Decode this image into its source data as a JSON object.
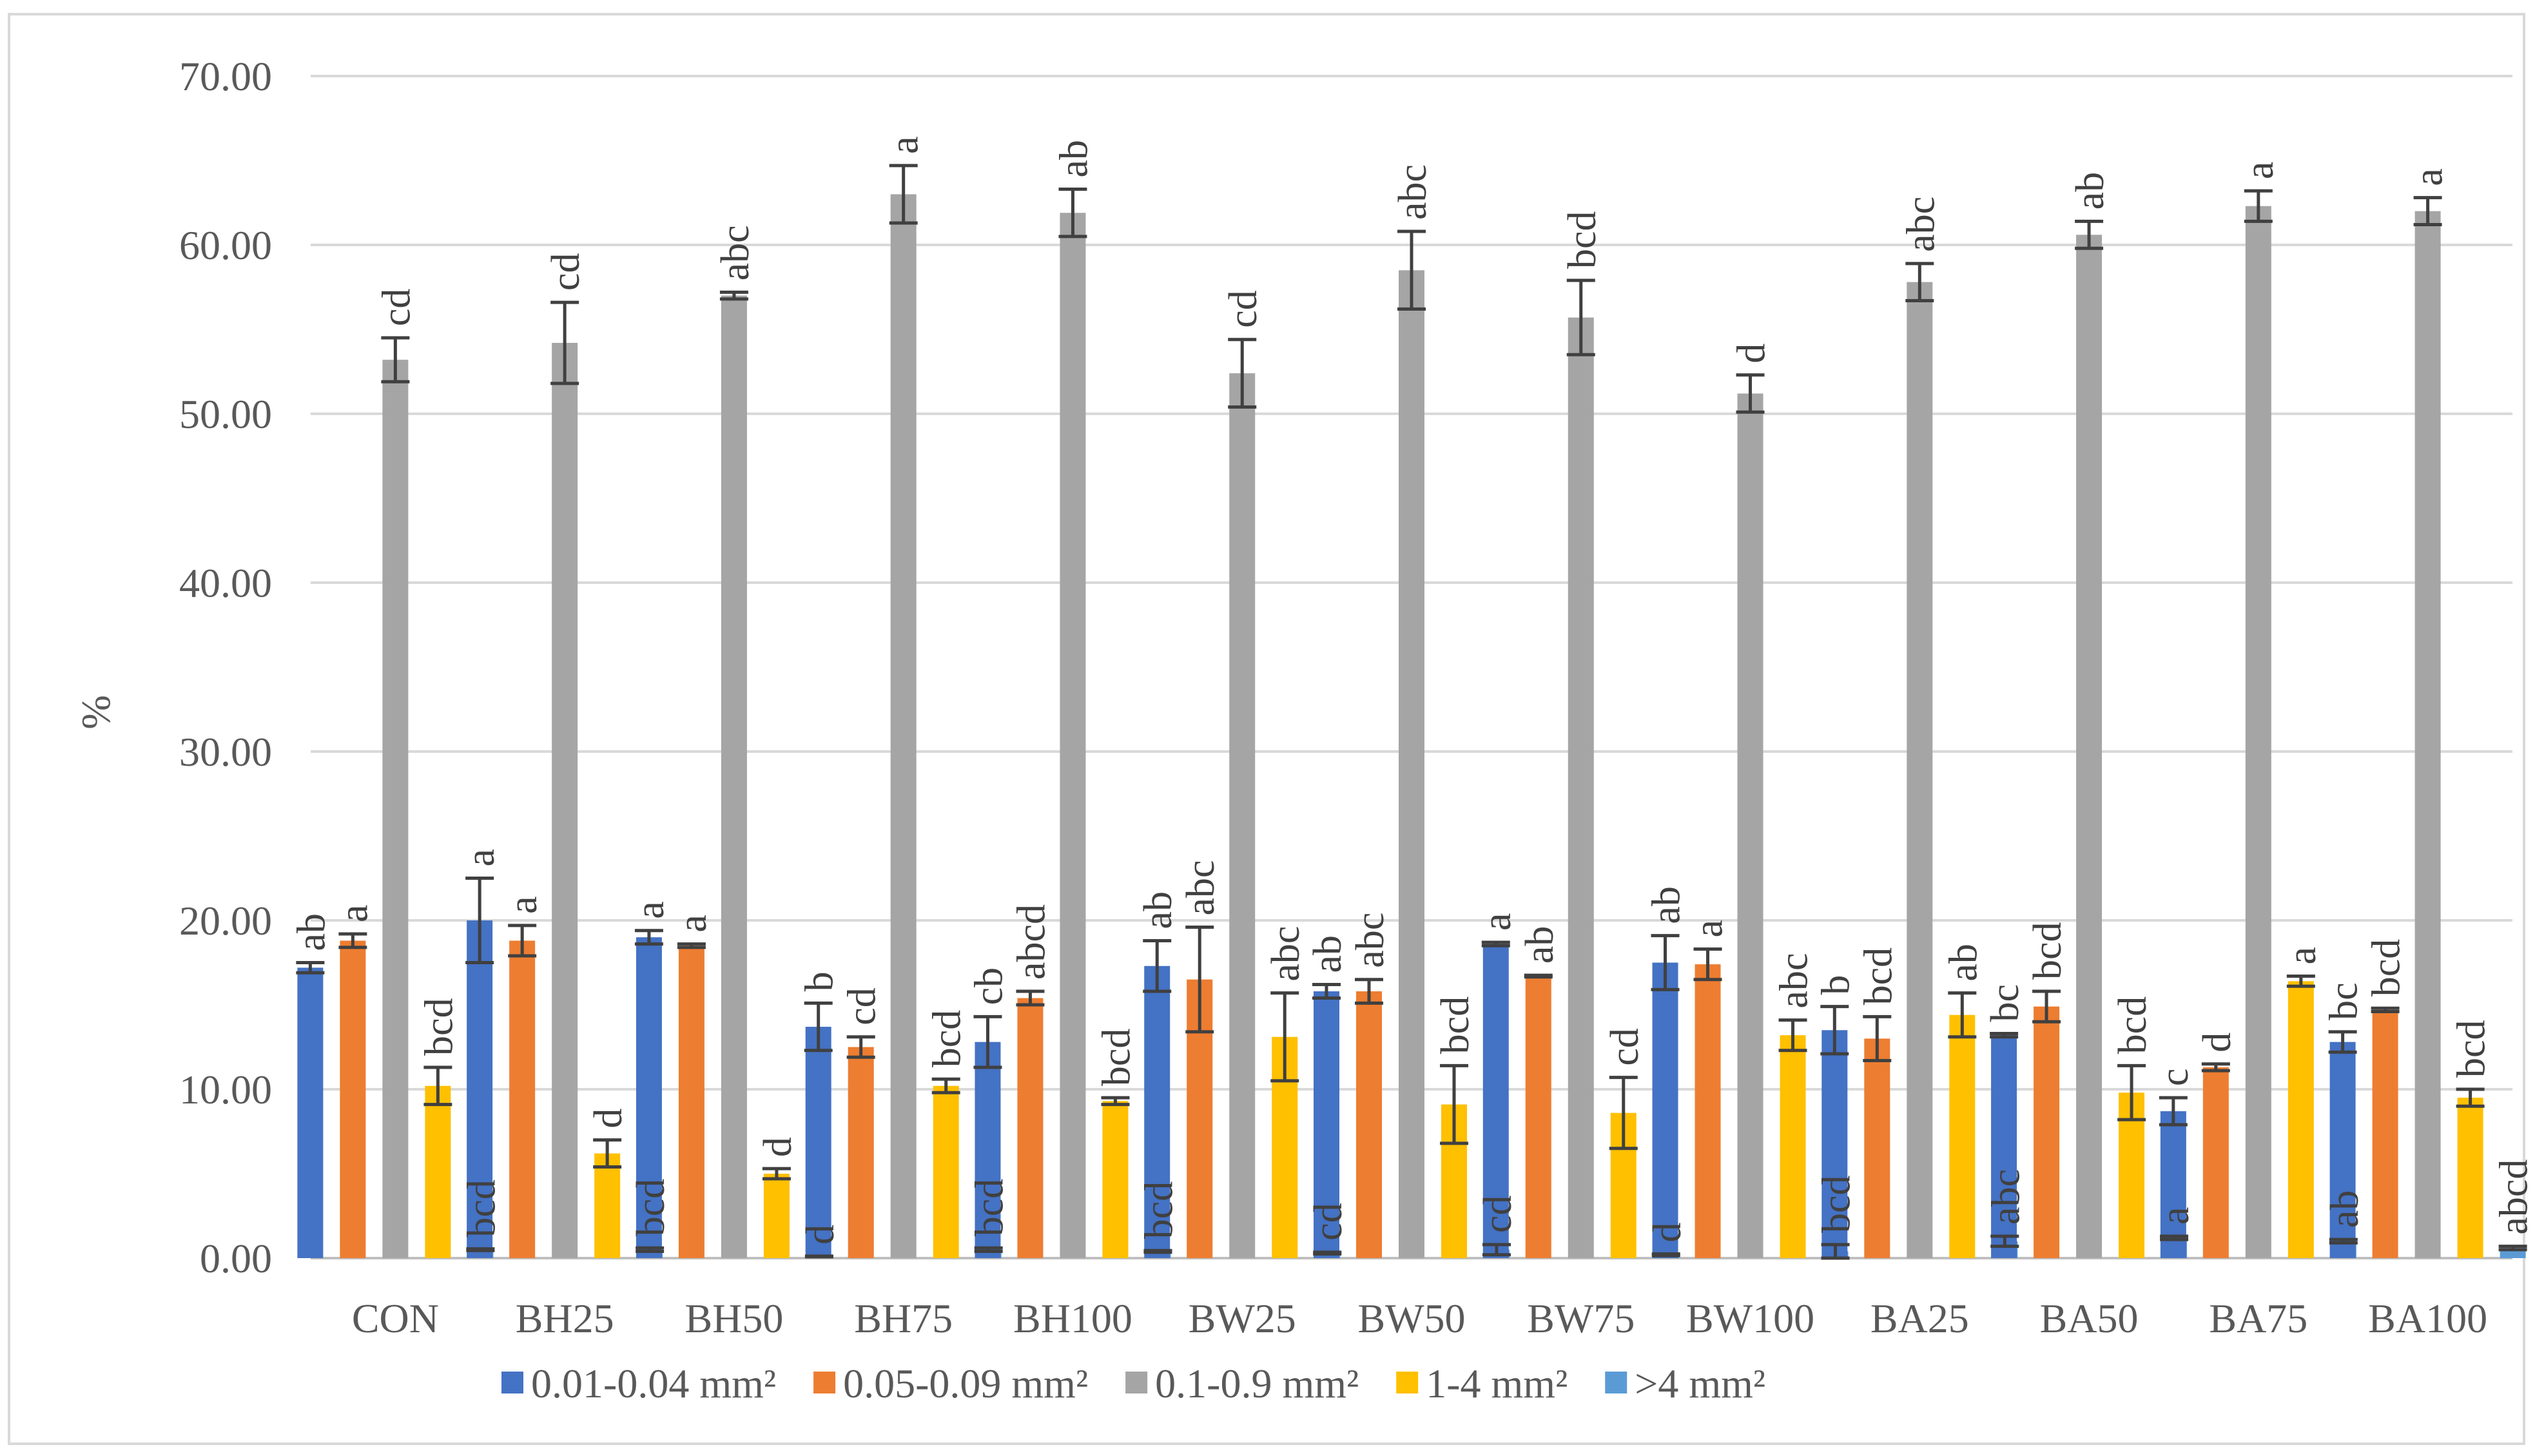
{
  "chart_data": {
    "type": "bar",
    "title": "",
    "xlabel": "",
    "ylabel": "%",
    "ylim": [
      0,
      70
    ],
    "yticks": [
      0,
      10,
      20,
      30,
      40,
      50,
      60,
      70
    ],
    "ytick_labels": [
      "0.00",
      "10.00",
      "20.00",
      "30.00",
      "40.00",
      "50.00",
      "60.00",
      "70.00"
    ],
    "grid": true,
    "legend_position": "bottom",
    "categories": [
      "CON",
      "BH25",
      "BH50",
      "BH75",
      "BH100",
      "BW25",
      "BW50",
      "BW75",
      "BW100",
      "BA25",
      "BA50",
      "BA75",
      "BA100"
    ],
    "series": [
      {
        "name": "0.01-0.04 mm²",
        "color": "#4472C4",
        "values": [
          17.2,
          20.0,
          19.0,
          13.7,
          12.8,
          17.3,
          15.8,
          18.6,
          17.5,
          13.5,
          13.2,
          8.7,
          12.8
        ],
        "errors": [
          0.3,
          2.5,
          0.4,
          1.4,
          1.5,
          1.5,
          0.4,
          0.1,
          1.6,
          1.4,
          0.1,
          0.8,
          0.6
        ],
        "labels": [
          "ab",
          "a",
          "a",
          "b",
          "cb",
          "ab",
          "ab",
          "a",
          "ab",
          "b",
          "bc",
          "c",
          "bc"
        ]
      },
      {
        "name": "0.05-0.09 mm²",
        "color": "#ED7D31",
        "values": [
          18.8,
          18.8,
          18.5,
          12.5,
          15.4,
          16.5,
          15.8,
          16.7,
          17.4,
          13.0,
          14.9,
          11.3,
          14.7
        ],
        "errors": [
          0.4,
          0.9,
          0.1,
          0.6,
          0.4,
          3.1,
          0.7,
          0.05,
          0.9,
          1.3,
          0.9,
          0.2,
          0.1
        ],
        "labels": [
          "a",
          "a",
          "a",
          "cd",
          "abcd",
          "abc",
          "abc",
          "ab",
          "a",
          "bcd",
          "bcd",
          "d",
          "bcd"
        ]
      },
      {
        "name": "0.1-0.9 mm²",
        "color": "#A5A5A5",
        "values": [
          53.2,
          54.2,
          57.0,
          63.0,
          61.9,
          52.4,
          58.5,
          55.7,
          51.2,
          57.8,
          60.6,
          62.3,
          62.0
        ],
        "errors": [
          1.3,
          2.4,
          0.2,
          1.7,
          1.4,
          2.0,
          2.3,
          2.2,
          1.1,
          1.1,
          0.8,
          0.9,
          0.8
        ],
        "labels": [
          "cd",
          "cd",
          "abc",
          "a",
          "ab",
          "cd",
          "abc",
          "bcd",
          "d",
          "abc",
          "ab",
          "a",
          "a"
        ]
      },
      {
        "name": "1-4 mm²",
        "color": "#FFC000",
        "values": [
          10.2,
          6.2,
          5.0,
          10.2,
          9.3,
          13.1,
          9.1,
          8.6,
          13.2,
          14.4,
          9.8,
          16.4,
          9.5
        ],
        "errors": [
          1.1,
          0.8,
          0.3,
          0.4,
          0.2,
          2.6,
          2.3,
          2.1,
          0.9,
          1.3,
          1.6,
          0.3,
          0.5
        ],
        "labels": [
          "bcd",
          "d",
          "d",
          "bcd",
          "bcd",
          "abc",
          "bcd",
          "cd",
          "abc",
          "ab",
          "bcd",
          "a",
          "bcd"
        ]
      },
      {
        "name": ">4 mm²",
        "color": "#5B9BD5",
        "values": [
          0.5,
          0.5,
          0.1,
          0.5,
          0.4,
          0.3,
          0.5,
          0.2,
          0.4,
          1.0,
          1.2,
          1.0,
          0.6
        ],
        "errors": [
          0.05,
          0.1,
          0.02,
          0.1,
          0.05,
          0.05,
          0.3,
          0.05,
          0.4,
          0.3,
          0.1,
          0.1,
          0.1
        ],
        "labels": [
          "bcd",
          "bcd",
          "d",
          "bcd",
          "bcd",
          "cd",
          "cd",
          "d",
          "bcd",
          "abc",
          "a",
          "ab",
          "abcd"
        ]
      }
    ]
  }
}
